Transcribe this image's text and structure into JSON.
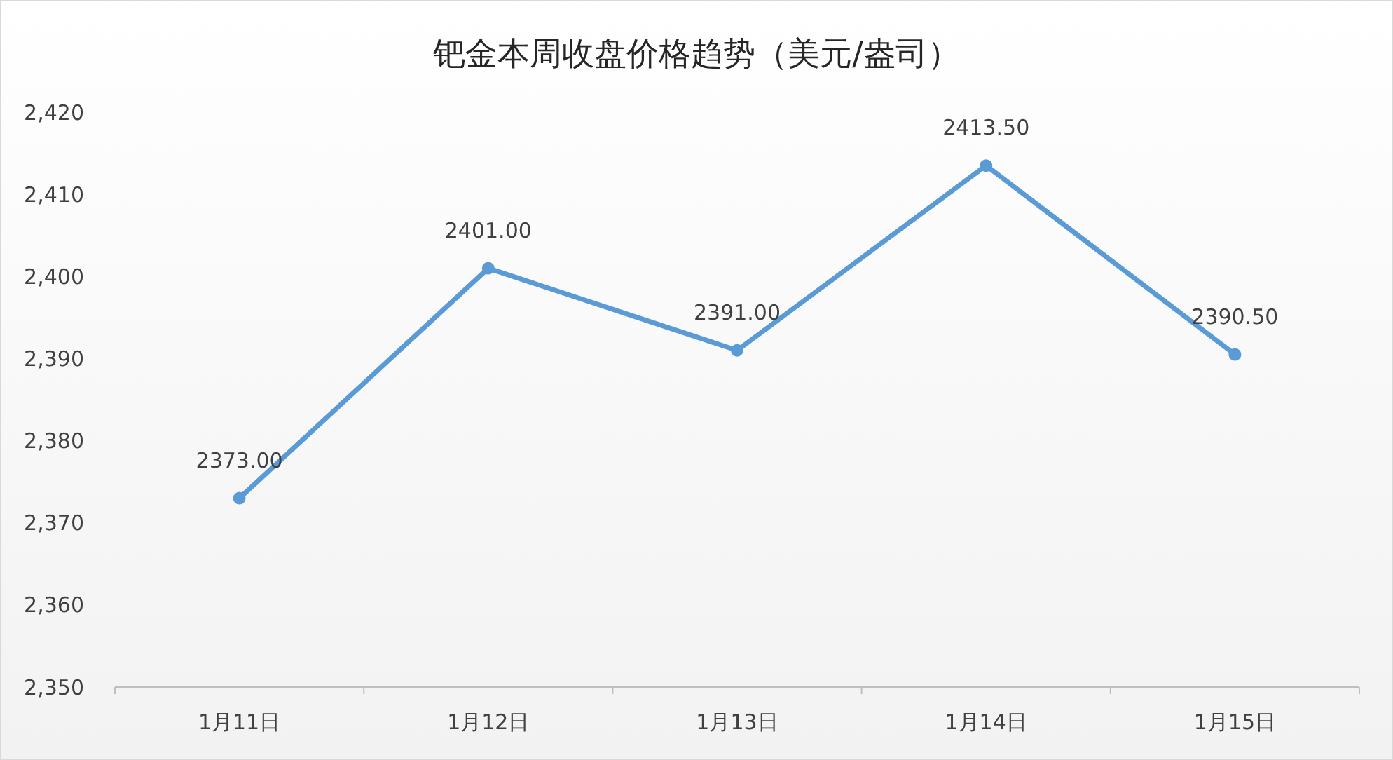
{
  "chart_data": {
    "type": "line",
    "title": "钯金本周收盘价格趋势（美元/盎司）",
    "categories": [
      "1月11日",
      "1月12日",
      "1月13日",
      "1月14日",
      "1月15日"
    ],
    "series": [
      {
        "color": "#5b9bd5",
        "values": [
          2373.0,
          2401.0,
          2391.0,
          2413.5,
          2390.5
        ]
      }
    ],
    "value_labels": [
      "2373.00",
      "2401.00",
      "2391.00",
      "2413.50",
      "2390.50"
    ],
    "ylim": [
      2350,
      2420
    ],
    "yticks": [
      {
        "value": 2350,
        "label": "2,350"
      },
      {
        "value": 2360,
        "label": "2,360"
      },
      {
        "value": 2370,
        "label": "2,370"
      },
      {
        "value": 2380,
        "label": "2,380"
      },
      {
        "value": 2390,
        "label": "2,390"
      },
      {
        "value": 2400,
        "label": "2,400"
      },
      {
        "value": 2410,
        "label": "2,410"
      },
      {
        "value": 2420,
        "label": "2,420"
      }
    ],
    "grid": false,
    "marker": "circle",
    "line_style": "solid"
  }
}
